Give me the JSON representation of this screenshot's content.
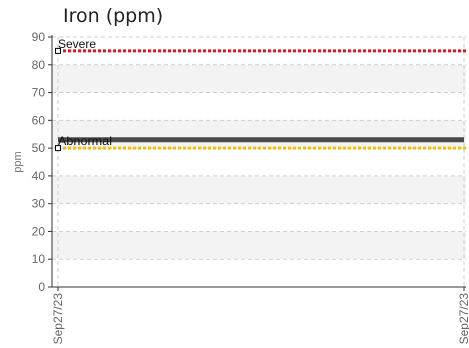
{
  "chart_data": {
    "type": "line",
    "title": "Iron (ppm)",
    "ylabel": "ppm",
    "xlabel": "",
    "ylim": [
      0,
      90
    ],
    "y_ticks": [
      0,
      10,
      20,
      30,
      40,
      50,
      60,
      70,
      80,
      90
    ],
    "x_ticks": [
      "Sep27/23",
      "Sep27/23"
    ],
    "grid": true,
    "series": [
      {
        "values": [
          53,
          53
        ],
        "color": "#4a4a4a"
      }
    ],
    "thresholds": [
      {
        "name": "Severe",
        "value": 85,
        "color": "#e8141b"
      },
      {
        "name": "Abnormal",
        "value": 50,
        "color": "#f2c200"
      }
    ]
  }
}
